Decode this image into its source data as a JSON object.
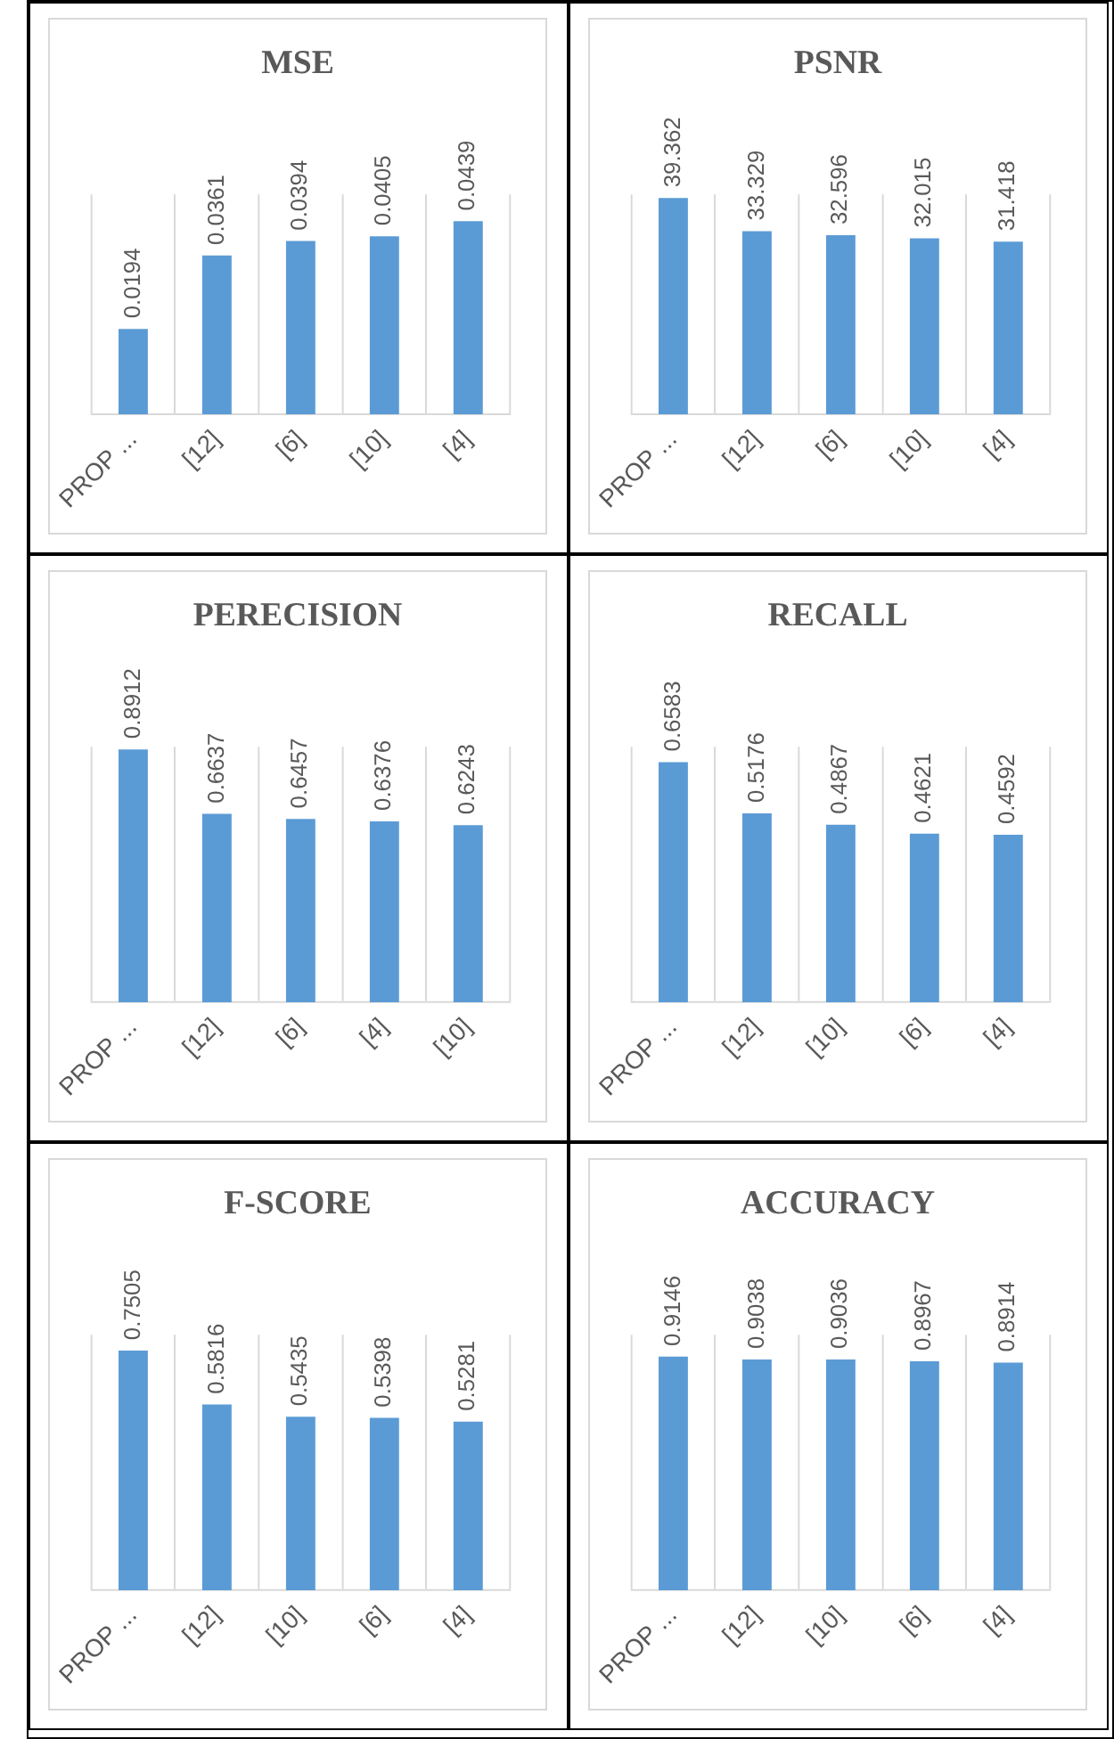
{
  "chart_data": [
    {
      "type": "bar",
      "title": "MSE",
      "categories": [
        "PROP ...",
        "[12]",
        "[6]",
        "[10]",
        "[4]"
      ],
      "values": [
        0.0194,
        0.0361,
        0.0394,
        0.0405,
        0.0439
      ],
      "color": "#5b9bd5",
      "data_labels": true,
      "grid": "x",
      "tick_labels": "x"
    },
    {
      "type": "bar",
      "title": "PSNR",
      "categories": [
        "PROP ...",
        "[12]",
        "[6]",
        "[10]",
        "[4]"
      ],
      "values": [
        39.362,
        33.329,
        32.596,
        32.015,
        31.418
      ],
      "color": "#5b9bd5",
      "data_labels": true,
      "grid": "x",
      "tick_labels": "x"
    },
    {
      "type": "bar",
      "title": "PERECISION",
      "categories": [
        "PROP ...",
        "[12]",
        "[6]",
        "[4]",
        "[10]"
      ],
      "values": [
        0.8912,
        0.6637,
        0.6457,
        0.6376,
        0.6243
      ],
      "color": "#5b9bd5",
      "data_labels": true,
      "grid": "x",
      "tick_labels": "x"
    },
    {
      "type": "bar",
      "title": "RECALL",
      "categories": [
        "PROP ...",
        "[12]",
        "[10]",
        "[6]",
        "[4]"
      ],
      "values": [
        0.6583,
        0.5176,
        0.4867,
        0.4621,
        0.4592
      ],
      "color": "#5b9bd5",
      "data_labels": true,
      "grid": "x",
      "tick_labels": "x"
    },
    {
      "type": "bar",
      "title": "F-SCORE",
      "categories": [
        "PROP ...",
        "[12]",
        "[10]",
        "[6]",
        "[4]"
      ],
      "values": [
        0.7505,
        0.5816,
        0.5435,
        0.5398,
        0.5281
      ],
      "color": "#5b9bd5",
      "data_labels": true,
      "grid": "x",
      "tick_labels": "x"
    },
    {
      "type": "bar",
      "title": "ACCURACY",
      "categories": [
        "PROP ...",
        "[12]",
        "[10]",
        "[6]",
        "[4]"
      ],
      "values": [
        0.9146,
        0.9038,
        0.9036,
        0.8967,
        0.8914
      ],
      "color": "#5b9bd5",
      "data_labels": true,
      "grid": "x",
      "tick_labels": "x"
    }
  ]
}
